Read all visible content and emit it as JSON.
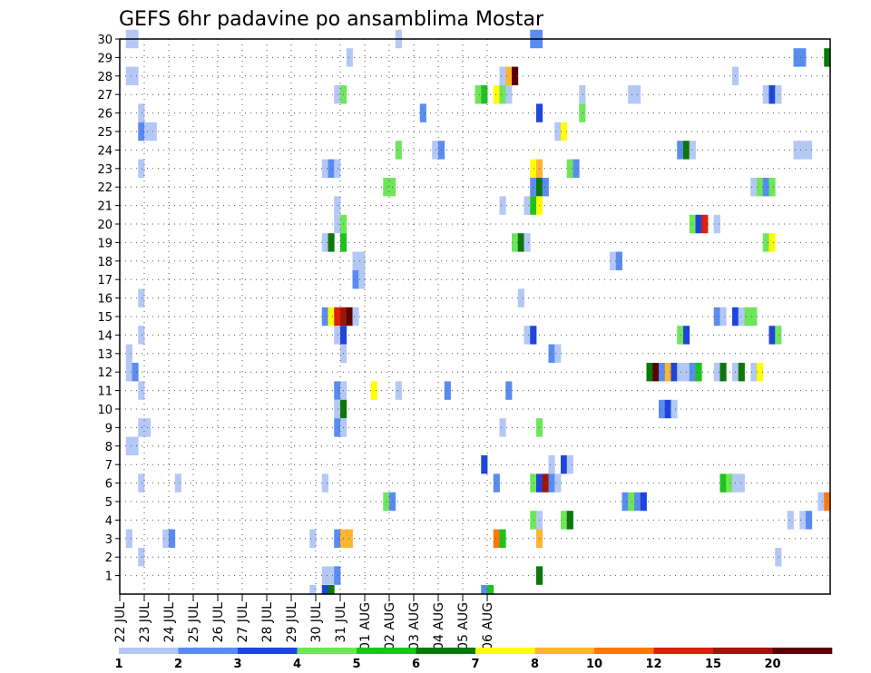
{
  "chart_data": {
    "type": "heatmap",
    "title": "GEFS 6hr padavine po ansamblima Mostar",
    "xlabel": "",
    "ylabel": "",
    "x_tick_labels": [
      "22 JUL",
      "23 JUL",
      "24 JUL",
      "25 JUL",
      "26 JUL",
      "27 JUL",
      "28 JUL",
      "29 JUL",
      "30 JUL",
      "31 JUL",
      "01 AUG",
      "02 AUG",
      "03 AUG",
      "04 AUG",
      "05 AUG",
      "06 AUG"
    ],
    "y_tick_labels": [
      "1",
      "2",
      "3",
      "4",
      "5",
      "6",
      "7",
      "8",
      "9",
      "10",
      "11",
      "12",
      "13",
      "14",
      "15",
      "16",
      "17",
      "18",
      "19",
      "20",
      "21",
      "22",
      "23",
      "24",
      "25",
      "26",
      "27",
      "28",
      "29",
      "30"
    ],
    "y_range": [
      0,
      30
    ],
    "time_step_hours": 6,
    "grid": true,
    "legend": "bottom colorbar",
    "colorbar": {
      "labels": [
        "1",
        "2",
        "3",
        "4",
        "5",
        "6",
        "7",
        "8",
        "10",
        "12",
        "15",
        "20"
      ],
      "colors": [
        "#b4c8f5",
        "#5a8cf0",
        "#1e46dc",
        "#6ee65a",
        "#1ec31e",
        "#0a780a",
        "#ffff00",
        "#ffb432",
        "#ff780a",
        "#e11e0a",
        "#a0140a",
        "#5a0000"
      ]
    },
    "cells": [
      {
        "m": 30,
        "t": 1,
        "c": 0
      },
      {
        "m": 30,
        "t": 2,
        "c": 0
      },
      {
        "m": 30,
        "t": 45,
        "c": 0
      },
      {
        "m": 30,
        "t": 67,
        "c": 1
      },
      {
        "m": 30,
        "t": 68,
        "c": 1
      },
      {
        "m": 29,
        "t": 37,
        "c": 0
      },
      {
        "m": 29,
        "t": 110,
        "c": 1
      },
      {
        "m": 29,
        "t": 111,
        "c": 1
      },
      {
        "m": 29,
        "t": 115,
        "c": 5
      },
      {
        "m": 28,
        "t": 1,
        "c": 0
      },
      {
        "m": 28,
        "t": 2,
        "c": 0
      },
      {
        "m": 28,
        "t": 62,
        "c": 0
      },
      {
        "m": 28,
        "t": 63,
        "c": 7
      },
      {
        "m": 28,
        "t": 64,
        "c": 11
      },
      {
        "m": 28,
        "t": 100,
        "c": 0
      },
      {
        "m": 27,
        "t": 35,
        "c": 0
      },
      {
        "m": 27,
        "t": 36,
        "c": 3
      },
      {
        "m": 27,
        "t": 58,
        "c": 3
      },
      {
        "m": 27,
        "t": 59,
        "c": 4
      },
      {
        "m": 27,
        "t": 61,
        "c": 6
      },
      {
        "m": 27,
        "t": 62,
        "c": 3
      },
      {
        "m": 27,
        "t": 63,
        "c": 0
      },
      {
        "m": 27,
        "t": 75,
        "c": 0
      },
      {
        "m": 27,
        "t": 83,
        "c": 0
      },
      {
        "m": 27,
        "t": 84,
        "c": 0
      },
      {
        "m": 27,
        "t": 105,
        "c": 0
      },
      {
        "m": 27,
        "t": 106,
        "c": 2
      },
      {
        "m": 27,
        "t": 107,
        "c": 0
      },
      {
        "m": 26,
        "t": 3,
        "c": 0
      },
      {
        "m": 26,
        "t": 49,
        "c": 1
      },
      {
        "m": 26,
        "t": 68,
        "c": 2
      },
      {
        "m": 26,
        "t": 75,
        "c": 3
      },
      {
        "m": 25,
        "t": 3,
        "c": 1
      },
      {
        "m": 25,
        "t": 4,
        "c": 0
      },
      {
        "m": 25,
        "t": 5,
        "c": 0
      },
      {
        "m": 25,
        "t": 71,
        "c": 0
      },
      {
        "m": 25,
        "t": 72,
        "c": 6
      },
      {
        "m": 24,
        "t": 45,
        "c": 3
      },
      {
        "m": 24,
        "t": 51,
        "c": 0
      },
      {
        "m": 24,
        "t": 52,
        "c": 1
      },
      {
        "m": 24,
        "t": 91,
        "c": 1
      },
      {
        "m": 24,
        "t": 92,
        "c": 5
      },
      {
        "m": 24,
        "t": 93,
        "c": 0
      },
      {
        "m": 24,
        "t": 110,
        "c": 0
      },
      {
        "m": 24,
        "t": 111,
        "c": 0
      },
      {
        "m": 24,
        "t": 112,
        "c": 0
      },
      {
        "m": 23,
        "t": 3,
        "c": 0
      },
      {
        "m": 23,
        "t": 33,
        "c": 0
      },
      {
        "m": 23,
        "t": 34,
        "c": 1
      },
      {
        "m": 23,
        "t": 35,
        "c": 0
      },
      {
        "m": 23,
        "t": 67,
        "c": 6
      },
      {
        "m": 23,
        "t": 68,
        "c": 7
      },
      {
        "m": 23,
        "t": 73,
        "c": 3
      },
      {
        "m": 23,
        "t": 74,
        "c": 1
      },
      {
        "m": 22,
        "t": 43,
        "c": 3
      },
      {
        "m": 22,
        "t": 44,
        "c": 3
      },
      {
        "m": 22,
        "t": 67,
        "c": 1
      },
      {
        "m": 22,
        "t": 68,
        "c": 5
      },
      {
        "m": 22,
        "t": 69,
        "c": 1
      },
      {
        "m": 22,
        "t": 103,
        "c": 0
      },
      {
        "m": 22,
        "t": 104,
        "c": 3
      },
      {
        "m": 22,
        "t": 105,
        "c": 1
      },
      {
        "m": 22,
        "t": 106,
        "c": 3
      },
      {
        "m": 21,
        "t": 35,
        "c": 0
      },
      {
        "m": 21,
        "t": 62,
        "c": 0
      },
      {
        "m": 21,
        "t": 66,
        "c": 0
      },
      {
        "m": 21,
        "t": 67,
        "c": 4
      },
      {
        "m": 21,
        "t": 68,
        "c": 6
      },
      {
        "m": 20,
        "t": 35,
        "c": 0
      },
      {
        "m": 20,
        "t": 36,
        "c": 3
      },
      {
        "m": 20,
        "t": 93,
        "c": 3
      },
      {
        "m": 20,
        "t": 94,
        "c": 2
      },
      {
        "m": 20,
        "t": 95,
        "c": 9
      },
      {
        "m": 20,
        "t": 97,
        "c": 0
      },
      {
        "m": 19,
        "t": 33,
        "c": 0
      },
      {
        "m": 19,
        "t": 34,
        "c": 5
      },
      {
        "m": 19,
        "t": 36,
        "c": 4
      },
      {
        "m": 19,
        "t": 64,
        "c": 3
      },
      {
        "m": 19,
        "t": 65,
        "c": 5
      },
      {
        "m": 19,
        "t": 66,
        "c": 0
      },
      {
        "m": 19,
        "t": 105,
        "c": 3
      },
      {
        "m": 19,
        "t": 106,
        "c": 6
      },
      {
        "m": 18,
        "t": 38,
        "c": 0
      },
      {
        "m": 18,
        "t": 39,
        "c": 0
      },
      {
        "m": 18,
        "t": 80,
        "c": 0
      },
      {
        "m": 18,
        "t": 81,
        "c": 1
      },
      {
        "m": 17,
        "t": 38,
        "c": 1
      },
      {
        "m": 17,
        "t": 39,
        "c": 0
      },
      {
        "m": 16,
        "t": 3,
        "c": 0
      },
      {
        "m": 16,
        "t": 65,
        "c": 0
      },
      {
        "m": 15,
        "t": 33,
        "c": 1
      },
      {
        "m": 15,
        "t": 34,
        "c": 6
      },
      {
        "m": 15,
        "t": 35,
        "c": 9
      },
      {
        "m": 15,
        "t": 36,
        "c": 10
      },
      {
        "m": 15,
        "t": 37,
        "c": 11
      },
      {
        "m": 15,
        "t": 38,
        "c": 0
      },
      {
        "m": 15,
        "t": 97,
        "c": 1
      },
      {
        "m": 15,
        "t": 98,
        "c": 0
      },
      {
        "m": 15,
        "t": 100,
        "c": 2
      },
      {
        "m": 15,
        "t": 101,
        "c": 0
      },
      {
        "m": 15,
        "t": 102,
        "c": 3
      },
      {
        "m": 15,
        "t": 103,
        "c": 3
      },
      {
        "m": 14,
        "t": 3,
        "c": 0
      },
      {
        "m": 14,
        "t": 35,
        "c": 0
      },
      {
        "m": 14,
        "t": 36,
        "c": 2
      },
      {
        "m": 14,
        "t": 66,
        "c": 0
      },
      {
        "m": 14,
        "t": 67,
        "c": 2
      },
      {
        "m": 14,
        "t": 91,
        "c": 3
      },
      {
        "m": 14,
        "t": 92,
        "c": 2
      },
      {
        "m": 14,
        "t": 106,
        "c": 2
      },
      {
        "m": 14,
        "t": 107,
        "c": 3
      },
      {
        "m": 13,
        "t": 1,
        "c": 0
      },
      {
        "m": 13,
        "t": 36,
        "c": 0
      },
      {
        "m": 13,
        "t": 70,
        "c": 1
      },
      {
        "m": 13,
        "t": 71,
        "c": 0
      },
      {
        "m": 12,
        "t": 1,
        "c": 0
      },
      {
        "m": 12,
        "t": 2,
        "c": 1
      },
      {
        "m": 12,
        "t": 86,
        "c": 5
      },
      {
        "m": 12,
        "t": 87,
        "c": 11
      },
      {
        "m": 12,
        "t": 88,
        "c": 1
      },
      {
        "m": 12,
        "t": 89,
        "c": 7
      },
      {
        "m": 12,
        "t": 90,
        "c": 2
      },
      {
        "m": 12,
        "t": 91,
        "c": 0
      },
      {
        "m": 12,
        "t": 92,
        "c": 0
      },
      {
        "m": 12,
        "t": 93,
        "c": 1
      },
      {
        "m": 12,
        "t": 94,
        "c": 4
      },
      {
        "m": 12,
        "t": 97,
        "c": 0
      },
      {
        "m": 12,
        "t": 98,
        "c": 5
      },
      {
        "m": 12,
        "t": 100,
        "c": 0
      },
      {
        "m": 12,
        "t": 101,
        "c": 5
      },
      {
        "m": 12,
        "t": 103,
        "c": 0
      },
      {
        "m": 12,
        "t": 104,
        "c": 6
      },
      {
        "m": 11,
        "t": 3,
        "c": 0
      },
      {
        "m": 11,
        "t": 35,
        "c": 1
      },
      {
        "m": 11,
        "t": 36,
        "c": 0
      },
      {
        "m": 11,
        "t": 41,
        "c": 6
      },
      {
        "m": 11,
        "t": 45,
        "c": 0
      },
      {
        "m": 11,
        "t": 53,
        "c": 1
      },
      {
        "m": 11,
        "t": 63,
        "c": 1
      },
      {
        "m": 10,
        "t": 35,
        "c": 0
      },
      {
        "m": 10,
        "t": 36,
        "c": 5
      },
      {
        "m": 10,
        "t": 88,
        "c": 1
      },
      {
        "m": 10,
        "t": 89,
        "c": 2
      },
      {
        "m": 10,
        "t": 90,
        "c": 0
      },
      {
        "m": 9,
        "t": 3,
        "c": 0
      },
      {
        "m": 9,
        "t": 4,
        "c": 0
      },
      {
        "m": 9,
        "t": 35,
        "c": 1
      },
      {
        "m": 9,
        "t": 36,
        "c": 0
      },
      {
        "m": 9,
        "t": 62,
        "c": 0
      },
      {
        "m": 9,
        "t": 68,
        "c": 3
      },
      {
        "m": 8,
        "t": 1,
        "c": 0
      },
      {
        "m": 8,
        "t": 2,
        "c": 0
      },
      {
        "m": 7,
        "t": 59,
        "c": 2
      },
      {
        "m": 7,
        "t": 70,
        "c": 0
      },
      {
        "m": 7,
        "t": 72,
        "c": 2
      },
      {
        "m": 7,
        "t": 73,
        "c": 0
      },
      {
        "m": 6,
        "t": 3,
        "c": 0
      },
      {
        "m": 6,
        "t": 9,
        "c": 0
      },
      {
        "m": 6,
        "t": 33,
        "c": 0
      },
      {
        "m": 6,
        "t": 61,
        "c": 1
      },
      {
        "m": 6,
        "t": 67,
        "c": 3
      },
      {
        "m": 6,
        "t": 68,
        "c": 2
      },
      {
        "m": 6,
        "t": 69,
        "c": 10
      },
      {
        "m": 6,
        "t": 70,
        "c": 1
      },
      {
        "m": 6,
        "t": 71,
        "c": 0
      },
      {
        "m": 6,
        "t": 98,
        "c": 4
      },
      {
        "m": 6,
        "t": 99,
        "c": 3
      },
      {
        "m": 6,
        "t": 100,
        "c": 0
      },
      {
        "m": 6,
        "t": 101,
        "c": 0
      },
      {
        "m": 5,
        "t": 43,
        "c": 3
      },
      {
        "m": 5,
        "t": 44,
        "c": 1
      },
      {
        "m": 5,
        "t": 82,
        "c": 1
      },
      {
        "m": 5,
        "t": 83,
        "c": 3
      },
      {
        "m": 5,
        "t": 84,
        "c": 1
      },
      {
        "m": 5,
        "t": 85,
        "c": 2
      },
      {
        "m": 5,
        "t": 114,
        "c": 0
      },
      {
        "m": 5,
        "t": 115,
        "c": 8
      },
      {
        "m": 4,
        "t": 67,
        "c": 3
      },
      {
        "m": 4,
        "t": 68,
        "c": 0
      },
      {
        "m": 4,
        "t": 72,
        "c": 3
      },
      {
        "m": 4,
        "t": 73,
        "c": 5
      },
      {
        "m": 4,
        "t": 109,
        "c": 0
      },
      {
        "m": 4,
        "t": 111,
        "c": 0
      },
      {
        "m": 4,
        "t": 112,
        "c": 1
      },
      {
        "m": 3,
        "t": 1,
        "c": 0
      },
      {
        "m": 3,
        "t": 7,
        "c": 0
      },
      {
        "m": 3,
        "t": 8,
        "c": 1
      },
      {
        "m": 3,
        "t": 31,
        "c": 0
      },
      {
        "m": 3,
        "t": 35,
        "c": 1
      },
      {
        "m": 3,
        "t": 36,
        "c": 7
      },
      {
        "m": 3,
        "t": 37,
        "c": 7
      },
      {
        "m": 3,
        "t": 61,
        "c": 8
      },
      {
        "m": 3,
        "t": 62,
        "c": 4
      },
      {
        "m": 3,
        "t": 68,
        "c": 7
      },
      {
        "m": 2,
        "t": 3,
        "c": 0
      },
      {
        "m": 2,
        "t": 107,
        "c": 0
      },
      {
        "m": 1,
        "t": 33,
        "c": 0
      },
      {
        "m": 1,
        "t": 34,
        "c": 0
      },
      {
        "m": 1,
        "t": 35,
        "c": 1
      },
      {
        "m": 1,
        "t": 68,
        "c": 5
      },
      {
        "m": 0,
        "t": 31,
        "c": 0
      },
      {
        "m": 0,
        "t": 33,
        "c": 2
      },
      {
        "m": 0,
        "t": 34,
        "c": 5
      },
      {
        "m": 0,
        "t": 59,
        "c": 1
      },
      {
        "m": 0,
        "t": 60,
        "c": 4
      }
    ]
  }
}
